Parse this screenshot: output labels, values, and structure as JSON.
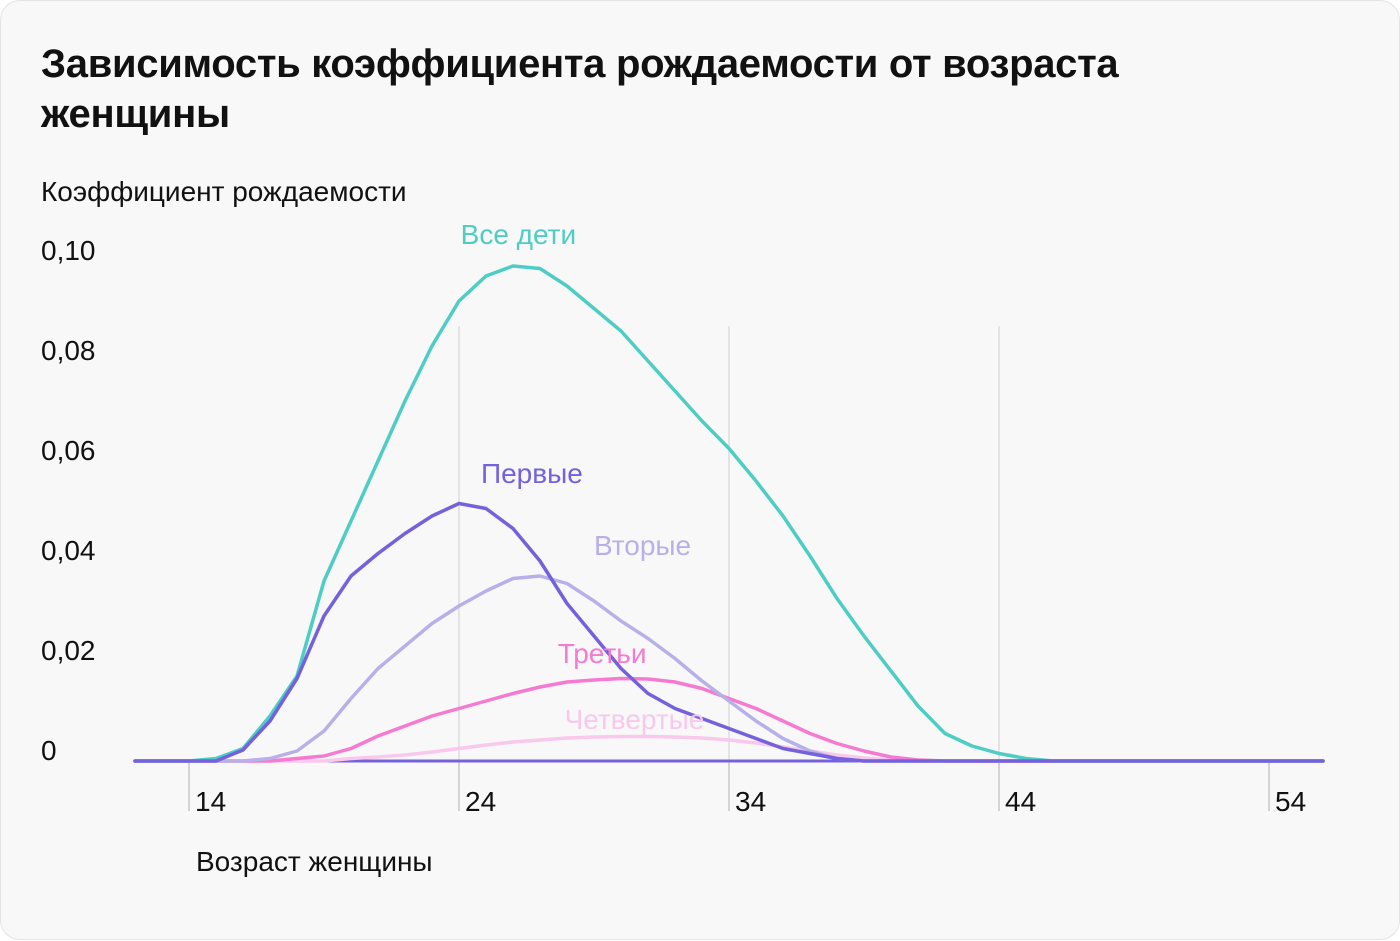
{
  "chart_data": {
    "type": "line",
    "title": "Зависимость коэффициента рождаемости от возраста женщины",
    "xlabel": "Возраст женщины",
    "ylabel": "Коэффициент рождаемости",
    "xlim": [
      12,
      56
    ],
    "ylim": [
      0,
      0.1
    ],
    "x_ticks": [
      {
        "value": 14,
        "label": "14"
      },
      {
        "value": 24,
        "label": "24"
      },
      {
        "value": 34,
        "label": "34"
      },
      {
        "value": 44,
        "label": "44"
      },
      {
        "value": 54,
        "label": "54"
      }
    ],
    "y_ticks": [
      {
        "value": 0,
        "label": "0"
      },
      {
        "value": 0.02,
        "label": "0,02"
      },
      {
        "value": 0.04,
        "label": "0,04"
      },
      {
        "value": 0.06,
        "label": "0,06"
      },
      {
        "value": 0.08,
        "label": "0,08"
      },
      {
        "value": 0.1,
        "label": "0,10"
      }
    ],
    "grid": "vertical-at-24-34-44",
    "legend": "inline-labels",
    "x": [
      12,
      13,
      14,
      15,
      16,
      17,
      18,
      19,
      20,
      21,
      22,
      23,
      24,
      25,
      26,
      27,
      28,
      29,
      30,
      31,
      32,
      33,
      34,
      35,
      36,
      37,
      38,
      39,
      40,
      41,
      42,
      43,
      44,
      45,
      46,
      47,
      48,
      49,
      50,
      51,
      52,
      53,
      54,
      55,
      56
    ],
    "series": [
      {
        "name": "Все дети",
        "color": "#4ecdc4",
        "label_at": {
          "x": 26.2,
          "y": 0.1034
        },
        "values": [
          0,
          0,
          0,
          0.0005,
          0.0025,
          0.009,
          0.017,
          0.036,
          0.048,
          0.06,
          0.072,
          0.083,
          0.092,
          0.097,
          0.099,
          0.0985,
          0.095,
          0.0905,
          0.086,
          0.08,
          0.074,
          0.068,
          0.0625,
          0.056,
          0.049,
          0.041,
          0.0325,
          0.025,
          0.018,
          0.011,
          0.0055,
          0.003,
          0.0015,
          0.0005,
          0,
          0,
          0,
          0,
          0,
          0,
          0,
          0,
          0,
          0,
          0
        ]
      },
      {
        "name": "Первые",
        "color": "#7462dc",
        "label_at": {
          "x": 26.7,
          "y": 0.0556
        },
        "values": [
          0,
          0,
          0,
          0,
          0.0022,
          0.008,
          0.0165,
          0.029,
          0.037,
          0.0415,
          0.0455,
          0.049,
          0.0515,
          0.0505,
          0.0465,
          0.04,
          0.0315,
          0.025,
          0.0185,
          0.0135,
          0.0105,
          0.0085,
          0.0065,
          0.0045,
          0.0025,
          0.0015,
          0.0005,
          0,
          0,
          0,
          0,
          0,
          0,
          0,
          0,
          0,
          0,
          0,
          0,
          0,
          0,
          0,
          0,
          0,
          0
        ]
      },
      {
        "name": "Вторые",
        "color": "#b8b0e8",
        "label_at": {
          "x": 30.8,
          "y": 0.0412
        },
        "values": [
          0,
          0,
          0,
          0,
          0,
          0.0005,
          0.002,
          0.006,
          0.0125,
          0.0185,
          0.023,
          0.0275,
          0.031,
          0.034,
          0.0365,
          0.037,
          0.0355,
          0.032,
          0.028,
          0.0245,
          0.0205,
          0.016,
          0.012,
          0.008,
          0.0045,
          0.002,
          0.0005,
          0,
          0,
          0,
          0,
          0,
          0,
          0,
          0,
          0,
          0,
          0,
          0,
          0,
          0,
          0,
          0,
          0,
          0
        ]
      },
      {
        "name": "Третьи",
        "color": "#f57ad1",
        "label_at": {
          "x": 29.3,
          "y": 0.0196
        },
        "values": [
          0,
          0,
          0,
          0,
          0,
          0,
          0.0005,
          0.001,
          0.0025,
          0.005,
          0.007,
          0.009,
          0.0105,
          0.012,
          0.0135,
          0.0148,
          0.0158,
          0.0162,
          0.0165,
          0.0164,
          0.0158,
          0.0145,
          0.0125,
          0.0105,
          0.008,
          0.0055,
          0.0035,
          0.002,
          0.0008,
          0.0002,
          0,
          0,
          0,
          0,
          0,
          0,
          0,
          0,
          0,
          0,
          0,
          0,
          0,
          0,
          0
        ]
      },
      {
        "name": "Четвертые",
        "color": "#f9c8ec",
        "label_at": {
          "x": 30.5,
          "y": 0.0064
        },
        "values": [
          0,
          0,
          0,
          0,
          0,
          0,
          0,
          0,
          0.0005,
          0.0008,
          0.0012,
          0.0018,
          0.0025,
          0.0032,
          0.0038,
          0.0042,
          0.0046,
          0.0048,
          0.0049,
          0.0049,
          0.0048,
          0.0046,
          0.0042,
          0.0036,
          0.0028,
          0.002,
          0.0012,
          0.0006,
          0.0002,
          0,
          0,
          0,
          0,
          0,
          0,
          0,
          0,
          0,
          0,
          0,
          0,
          0,
          0,
          0,
          0
        ]
      }
    ]
  }
}
